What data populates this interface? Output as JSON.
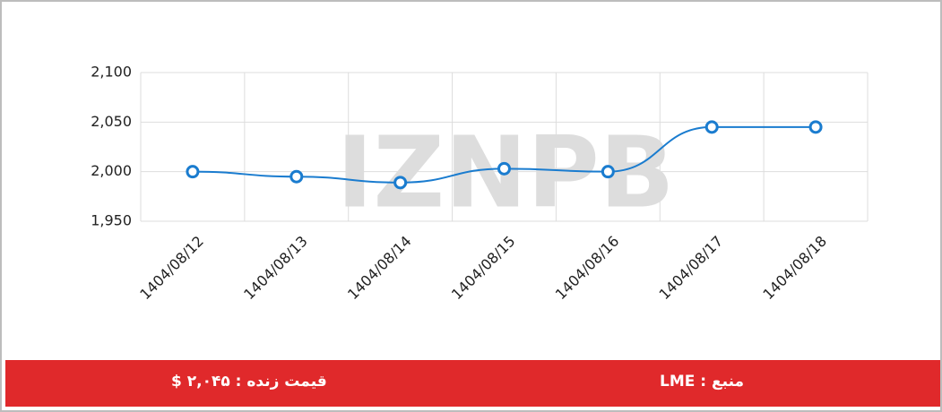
{
  "chart_data": {
    "type": "line",
    "watermark": "IZNPB",
    "categories": [
      "1404/08/12",
      "1404/08/13",
      "1404/08/14",
      "1404/08/15",
      "1404/08/16",
      "1404/08/17",
      "1404/08/18"
    ],
    "values": [
      2000,
      1995,
      1989,
      2003,
      2000,
      2045,
      2045
    ],
    "color": "#1a7ccf",
    "ylim": [
      1950,
      2100
    ],
    "yticks": [
      {
        "value": 1950,
        "label": "1,950"
      },
      {
        "value": 2000,
        "label": "2,000"
      },
      {
        "value": 2050,
        "label": "2,050"
      },
      {
        "value": 2100,
        "label": "2,100"
      }
    ],
    "grid": true
  },
  "footer": {
    "source": "منبع : LME",
    "live_price": "قیمت زنده : ۲,۰۴۵ $"
  }
}
